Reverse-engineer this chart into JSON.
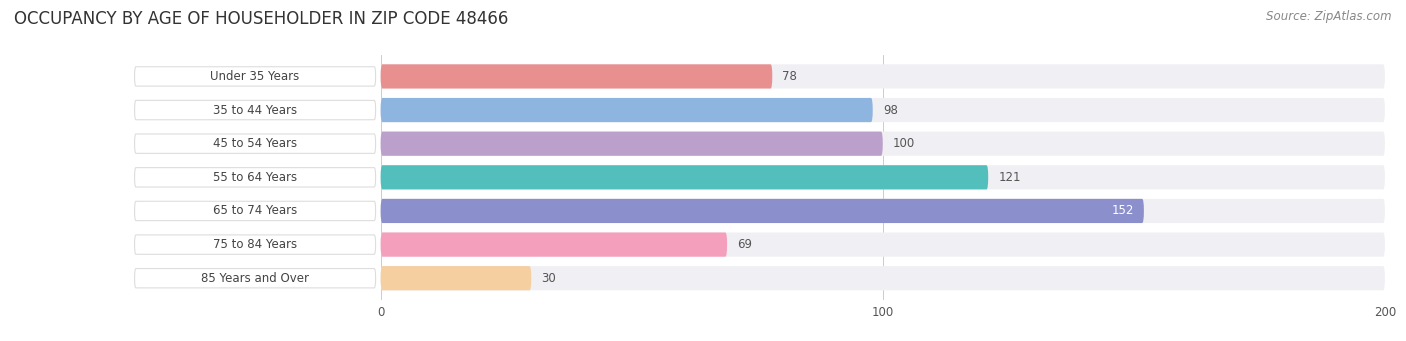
{
  "title": "OCCUPANCY BY AGE OF HOUSEHOLDER IN ZIP CODE 48466",
  "source": "Source: ZipAtlas.com",
  "categories": [
    "Under 35 Years",
    "35 to 44 Years",
    "45 to 54 Years",
    "55 to 64 Years",
    "65 to 74 Years",
    "75 to 84 Years",
    "85 Years and Over"
  ],
  "values": [
    78,
    98,
    100,
    121,
    152,
    69,
    30
  ],
  "bar_colors": [
    "#E89090",
    "#8EB4E0",
    "#BBA0CC",
    "#52BFBC",
    "#8B8FCC",
    "#F4A0BC",
    "#F5CFA0"
  ],
  "bar_bg_color": "#F0F0F4",
  "xlim": [
    0,
    200
  ],
  "xticks": [
    0,
    100,
    200
  ],
  "title_fontsize": 12,
  "source_fontsize": 8.5,
  "label_fontsize": 8.5,
  "value_fontsize": 8.5,
  "bar_height": 0.72,
  "bg_color": "#FFFFFF",
  "label_color": "#444444",
  "value_color_inside": "#FFFFFF",
  "value_color_outside": "#555555",
  "inside_threshold": 140,
  "label_pill_color": "#FFFFFF",
  "grid_color": "#CCCCCC"
}
